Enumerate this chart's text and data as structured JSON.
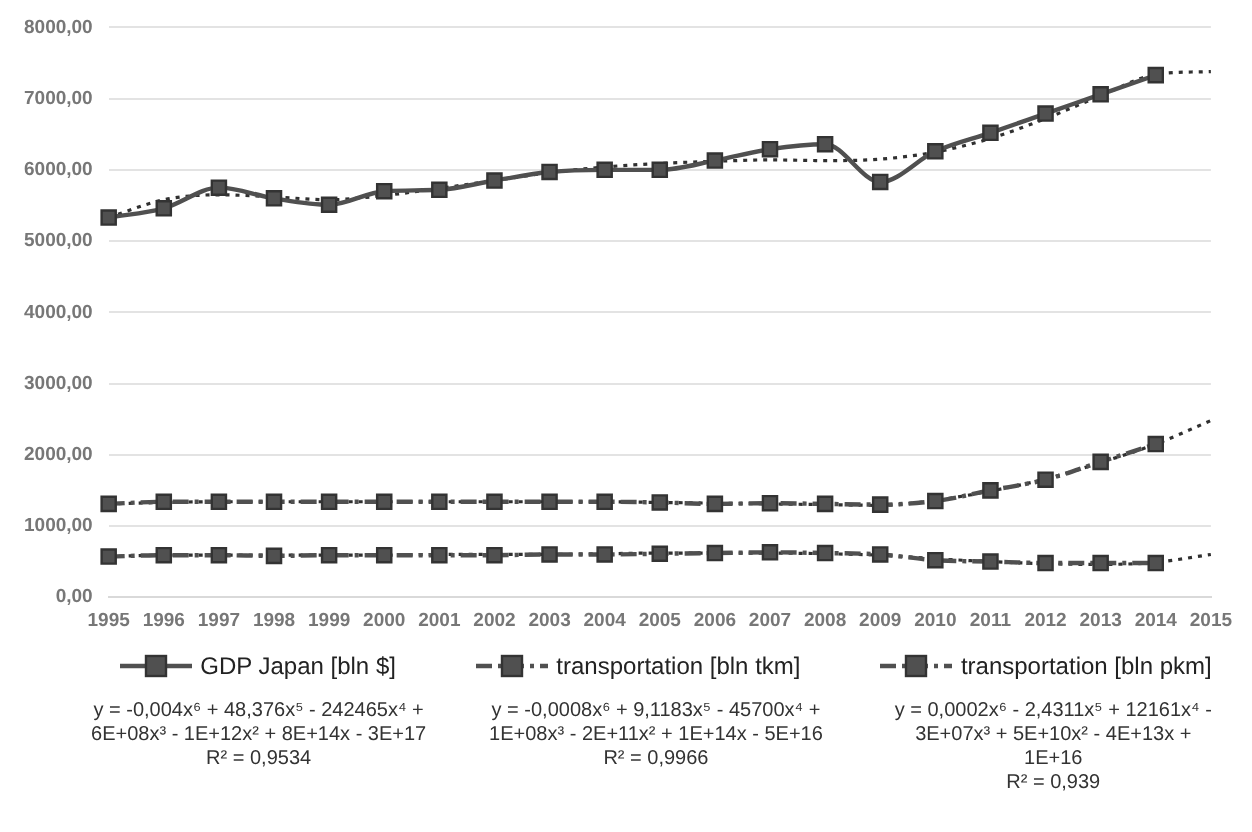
{
  "chart_data": {
    "type": "line",
    "categories": [
      "1995",
      "1996",
      "1997",
      "1998",
      "1999",
      "2000",
      "2001",
      "2002",
      "2003",
      "2004",
      "2005",
      "2006",
      "2007",
      "2008",
      "2009",
      "2010",
      "2011",
      "2012",
      "2013",
      "2014",
      "2015"
    ],
    "series": [
      {
        "name": "GDP Japan [bln $]",
        "color": "#505050",
        "line_style": "solid",
        "values": [
          5330,
          5460,
          5750,
          5600,
          5510,
          5700,
          5720,
          5850,
          5970,
          6000,
          6000,
          6130,
          6290,
          6360,
          5830,
          6260,
          6520,
          6790,
          7060,
          7330,
          null
        ]
      },
      {
        "name": "transportation [bln tkm]",
        "color": "#505050",
        "line_style": "dashed",
        "values": [
          1310,
          1340,
          1340,
          1340,
          1340,
          1340,
          1340,
          1340,
          1340,
          1340,
          1330,
          1310,
          1320,
          1310,
          1300,
          1350,
          1500,
          1650,
          1900,
          2150,
          null
        ]
      },
      {
        "name": "transportation [bln pkm]",
        "color": "#505050",
        "line_style": "dashed",
        "values": [
          570,
          590,
          590,
          580,
          590,
          590,
          590,
          590,
          600,
          600,
          610,
          620,
          630,
          620,
          600,
          520,
          500,
          480,
          480,
          480,
          null
        ]
      },
      {
        "type": "line",
        "color": "#303030",
        "line_style": "dotted",
        "marker": "none",
        "values": [
          5330,
          5580,
          5650,
          5620,
          5580,
          5640,
          5740,
          5850,
          5960,
          6040,
          6090,
          6120,
          6140,
          6130,
          6150,
          6250,
          6440,
          6720,
          7040,
          7340,
          7380
        ]
      },
      {
        "type": "line",
        "color": "#303030",
        "line_style": "dotted",
        "marker": "none",
        "values": [
          1310,
          1330,
          1340,
          1340,
          1340,
          1340,
          1340,
          1340,
          1340,
          1340,
          1330,
          1320,
          1310,
          1300,
          1290,
          1360,
          1490,
          1660,
          1890,
          2150,
          2480
        ]
      },
      {
        "type": "line",
        "color": "#303030",
        "line_style": "dotted",
        "marker": "none",
        "values": [
          570,
          590,
          590,
          590,
          590,
          590,
          600,
          600,
          600,
          610,
          620,
          620,
          620,
          610,
          590,
          540,
          500,
          470,
          460,
          490,
          600
        ]
      }
    ],
    "ylim": [
      0,
      8000
    ],
    "yticks": [
      {
        "value": 0,
        "label": "0,00"
      },
      {
        "value": 1000,
        "label": "1000,00"
      },
      {
        "value": 2000,
        "label": "2000,00"
      },
      {
        "value": 3000,
        "label": "3000,00"
      },
      {
        "value": 4000,
        "label": "4000,00"
      },
      {
        "value": 5000,
        "label": "5000,00"
      },
      {
        "value": 6000,
        "label": "6000,00"
      },
      {
        "value": 7000,
        "label": "7000,00"
      },
      {
        "value": 8000,
        "label": "8000,00"
      }
    ],
    "grid": "y",
    "legend": "bottom",
    "marker": "square",
    "annotations": [
      "y = -0,004x⁶ + 48,376x⁵ - 242465x⁴ + 6E+08x³ - 1E+12x² + 8E+14x - 3E+17",
      "R² = 0,9534",
      "y = -0,0008x⁶ + 9,1183x⁵ - 45700x⁴ + 1E+08x³ - 2E+11x² + 1E+14x - 5E+16",
      "R² = 0,9966",
      "y = 0,0002x⁶ - 2,4311x⁵ + 12161x⁴ - 3E+07x³ + 5E+10x² - 4E+13x + 1E+16",
      "R² = 0,939"
    ]
  }
}
